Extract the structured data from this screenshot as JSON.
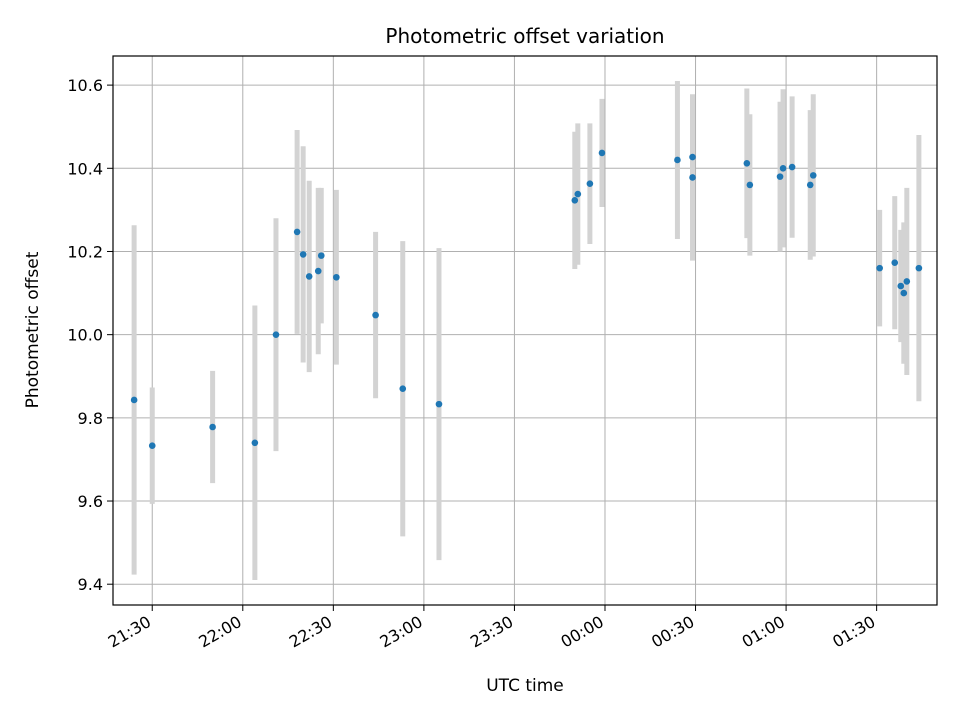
{
  "chart_data": {
    "type": "scatter",
    "title": "Photometric offset variation",
    "xlabel": "UTC time",
    "ylabel": "Photometric offset",
    "x_axis_kind": "time",
    "xlim": [
      "21:17",
      "01:50"
    ],
    "ylim": [
      9.35,
      10.67
    ],
    "grid": true,
    "legend": "none",
    "x_ticks": [
      "21:30",
      "22:00",
      "22:30",
      "23:00",
      "23:30",
      "00:00",
      "00:30",
      "01:00",
      "01:30"
    ],
    "y_ticks": [
      9.4,
      9.6,
      9.8,
      10.0,
      10.2,
      10.4,
      10.6
    ],
    "colors": {
      "points": "#1f77b4",
      "errorbars": "#d3d3d3",
      "grid": "#b0b0b0"
    },
    "series": [
      {
        "points": [
          {
            "x": "21:24",
            "y": 9.843,
            "err": 0.42
          },
          {
            "x": "21:30",
            "y": 9.733,
            "err": 0.14
          },
          {
            "x": "21:50",
            "y": 9.778,
            "err": 0.135
          },
          {
            "x": "22:04",
            "y": 9.74,
            "err": 0.33
          },
          {
            "x": "22:11",
            "y": 10.0,
            "err": 0.28
          },
          {
            "x": "22:18",
            "y": 10.247,
            "err": 0.245
          },
          {
            "x": "22:20",
            "y": 10.193,
            "err": 0.26
          },
          {
            "x": "22:22",
            "y": 10.14,
            "err": 0.23
          },
          {
            "x": "22:25",
            "y": 10.153,
            "err": 0.2
          },
          {
            "x": "22:26",
            "y": 10.19,
            "err": 0.163
          },
          {
            "x": "22:31",
            "y": 10.138,
            "err": 0.21
          },
          {
            "x": "22:44",
            "y": 10.047,
            "err": 0.2
          },
          {
            "x": "22:53",
            "y": 9.87,
            "err": 0.355
          },
          {
            "x": "23:05",
            "y": 9.833,
            "err": 0.375
          },
          {
            "x": "23:50",
            "y": 10.323,
            "err": 0.165
          },
          {
            "x": "23:51",
            "y": 10.338,
            "err": 0.17
          },
          {
            "x": "23:55",
            "y": 10.363,
            "err": 0.145
          },
          {
            "x": "23:59",
            "y": 10.437,
            "err": 0.13
          },
          {
            "x": "00:24",
            "y": 10.42,
            "err": 0.19
          },
          {
            "x": "00:29",
            "y": 10.427,
            "err": 0.15
          },
          {
            "x": "00:29",
            "y": 10.378,
            "err": 0.2
          },
          {
            "x": "00:47",
            "y": 10.412,
            "err": 0.18
          },
          {
            "x": "00:48",
            "y": 10.36,
            "err": 0.17
          },
          {
            "x": "00:58",
            "y": 10.38,
            "err": 0.18
          },
          {
            "x": "00:59",
            "y": 10.4,
            "err": 0.19
          },
          {
            "x": "01:02",
            "y": 10.403,
            "err": 0.17
          },
          {
            "x": "01:08",
            "y": 10.36,
            "err": 0.18
          },
          {
            "x": "01:09",
            "y": 10.383,
            "err": 0.195
          },
          {
            "x": "01:31",
            "y": 10.16,
            "err": 0.14
          },
          {
            "x": "01:36",
            "y": 10.173,
            "err": 0.16
          },
          {
            "x": "01:38",
            "y": 10.117,
            "err": 0.135
          },
          {
            "x": "01:39",
            "y": 10.1,
            "err": 0.17
          },
          {
            "x": "01:40",
            "y": 10.128,
            "err": 0.225
          },
          {
            "x": "01:44",
            "y": 10.16,
            "err": 0.32
          }
        ]
      }
    ]
  }
}
